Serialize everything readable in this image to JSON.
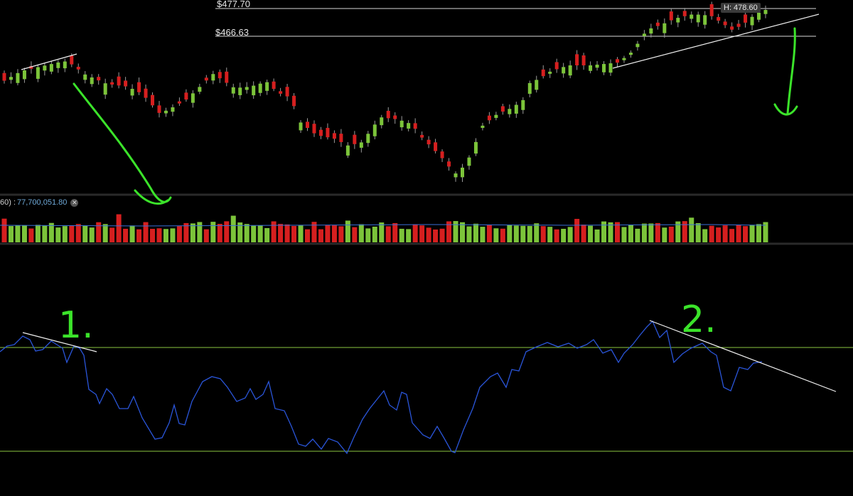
{
  "chart_data": [
    {
      "type": "candlestick",
      "panel": "price",
      "price_levels": [
        477.7,
        466.63
      ],
      "price_level_labels": [
        "$477.70",
        "$466.63"
      ],
      "high_label": "H: 478.60",
      "candle_count": 114,
      "colors": {
        "up": "#7cc43a",
        "down": "#d61f1f",
        "wick": "#9a9a9a",
        "levels": "#d9d9d9"
      }
    },
    {
      "type": "bar",
      "panel": "volume",
      "readout_prefix": "60) : ",
      "readout_value": "77,700,051.80",
      "bar_count": 114,
      "colors": {
        "up": "#7cc43a",
        "down": "#d61f1f",
        "ma": "#3a6fd8"
      }
    },
    {
      "type": "line",
      "panel": "oscillator",
      "reference_lines": [
        "upper",
        "lower"
      ],
      "colors": {
        "line": "#2a55d9",
        "reference": "#8cc63f"
      }
    }
  ],
  "annotations": {
    "label_1": "1.",
    "label_2": "2.",
    "ink_color": "#3be32a"
  },
  "icons": {
    "volume_close": "close-circle-icon"
  }
}
